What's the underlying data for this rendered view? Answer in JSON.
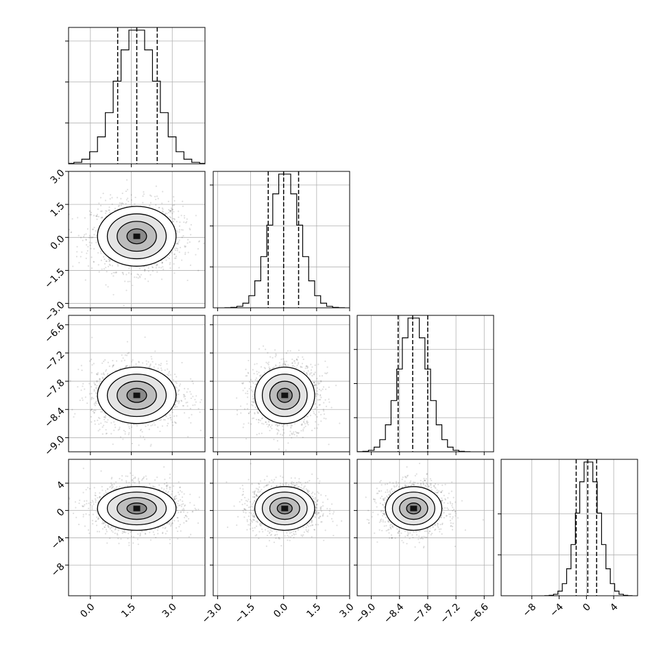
{
  "chart_data": {
    "type": "corner",
    "grid": true,
    "parameters": [
      {
        "range": [
          -0.8,
          4.2
        ],
        "ticks": [
          0.0,
          1.5,
          3.0
        ],
        "tick_labels": [
          "0.0",
          "1.5",
          "3.0"
        ],
        "center": 1.7,
        "sigma": 0.72,
        "quantiles": [
          1.0,
          1.7,
          2.45
        ],
        "hist_yticks": [
          0.3,
          0.6,
          0.9
        ]
      },
      {
        "range": [
          -3.2,
          3.0
        ],
        "ticks": [
          -3.0,
          -1.5,
          0.0,
          1.5,
          3.0
        ],
        "tick_labels": [
          "−3.0",
          "−1.5",
          "0.0",
          "1.5",
          "3.0"
        ],
        "center": 0.05,
        "sigma": 0.68,
        "quantiles": [
          -0.7,
          0.0,
          0.68
        ],
        "hist_yticks": [
          0.3,
          0.6,
          0.9
        ]
      },
      {
        "range": [
          -9.3,
          -6.4
        ],
        "ticks": [
          -9.0,
          -8.4,
          -7.8,
          -7.2,
          -6.6
        ],
        "tick_labels": [
          "−9.0",
          "−8.4",
          "−7.8",
          "−7.2",
          "−6.6"
        ],
        "center": -8.1,
        "sigma": 0.3,
        "quantiles": [
          -8.43,
          -8.12,
          -7.8
        ],
        "hist_yticks": [
          0.25,
          0.5,
          0.75
        ]
      },
      {
        "range": [
          -12.5,
          7.5
        ],
        "ticks": [
          -8,
          -4,
          0,
          4
        ],
        "tick_labels": [
          "−8",
          "−4",
          "0",
          "4"
        ],
        "center": 0.3,
        "sigma": 1.6,
        "quantiles": [
          -1.5,
          0.2,
          1.5
        ],
        "hist_yticks": [
          0.3,
          0.6
        ]
      }
    ],
    "contour_levels": [
      0.5,
      1.0,
      1.5,
      2.0
    ]
  }
}
